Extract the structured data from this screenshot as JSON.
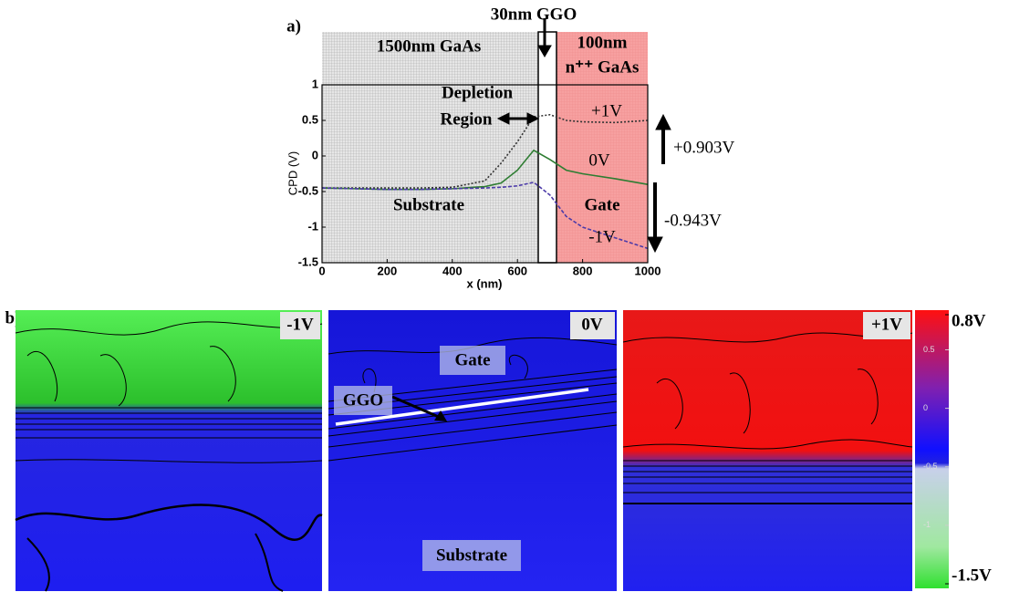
{
  "chart_data": {
    "type": "line",
    "panel_label": "a)",
    "x_label": "x (nm)",
    "y_label": "CPD (V)",
    "xlim": [
      0,
      1000
    ],
    "ylim": [
      -1.5,
      1
    ],
    "xticks": [
      0,
      200,
      400,
      600,
      800,
      1000
    ],
    "yticks": [
      -1.5,
      -1,
      -0.5,
      0,
      0.5,
      1
    ],
    "x": [
      0,
      100,
      200,
      300,
      400,
      500,
      550,
      600,
      650,
      700,
      750,
      800,
      900,
      1000
    ],
    "series": [
      {
        "name": "+1V",
        "color": "#333333",
        "dash": "2,2",
        "values": [
          -0.45,
          -0.45,
          -0.45,
          -0.45,
          -0.44,
          -0.35,
          -0.1,
          0.2,
          0.55,
          0.58,
          0.5,
          0.48,
          0.47,
          0.5
        ]
      },
      {
        "name": "0V",
        "color": "#2e7d32",
        "dash": "",
        "values": [
          -0.45,
          -0.46,
          -0.47,
          -0.47,
          -0.46,
          -0.43,
          -0.38,
          -0.2,
          0.08,
          -0.05,
          -0.2,
          -0.25,
          -0.32,
          -0.4
        ]
      },
      {
        "name": "-1V",
        "color": "#4b3aa8",
        "dash": "4,2",
        "values": [
          -0.45,
          -0.46,
          -0.47,
          -0.47,
          -0.46,
          -0.45,
          -0.44,
          -0.42,
          -0.37,
          -0.55,
          -0.85,
          -1.0,
          -1.15,
          -1.3
        ]
      }
    ],
    "annotations": {
      "substrate_layer": "1500nm GaAs",
      "oxide_layer": "30nm GGO",
      "gate_thickness": "100nm",
      "gate_material": "n⁺⁺ GaAs",
      "depletion_1": "Depletion",
      "depletion_2": "Region",
      "substrate": "Substrate",
      "gate": "Gate",
      "shift_up": "+0.903V",
      "shift_down": "-0.943V"
    }
  },
  "panel_b": {
    "label": "b)",
    "images": [
      {
        "label": "-1V"
      },
      {
        "label": "0V"
      },
      {
        "label": "+1V"
      }
    ],
    "annotations": {
      "ggo": "GGO",
      "gate": "Gate",
      "substrate": "Substrate"
    },
    "colorbar": {
      "lim": [
        -1.5,
        0.8
      ],
      "ticks": [
        {
          "value": 0.8,
          "label": "0.8V"
        },
        0.5,
        0,
        -0.5,
        -1,
        {
          "value": -1.5,
          "label": "-1.5V"
        }
      ]
    }
  }
}
